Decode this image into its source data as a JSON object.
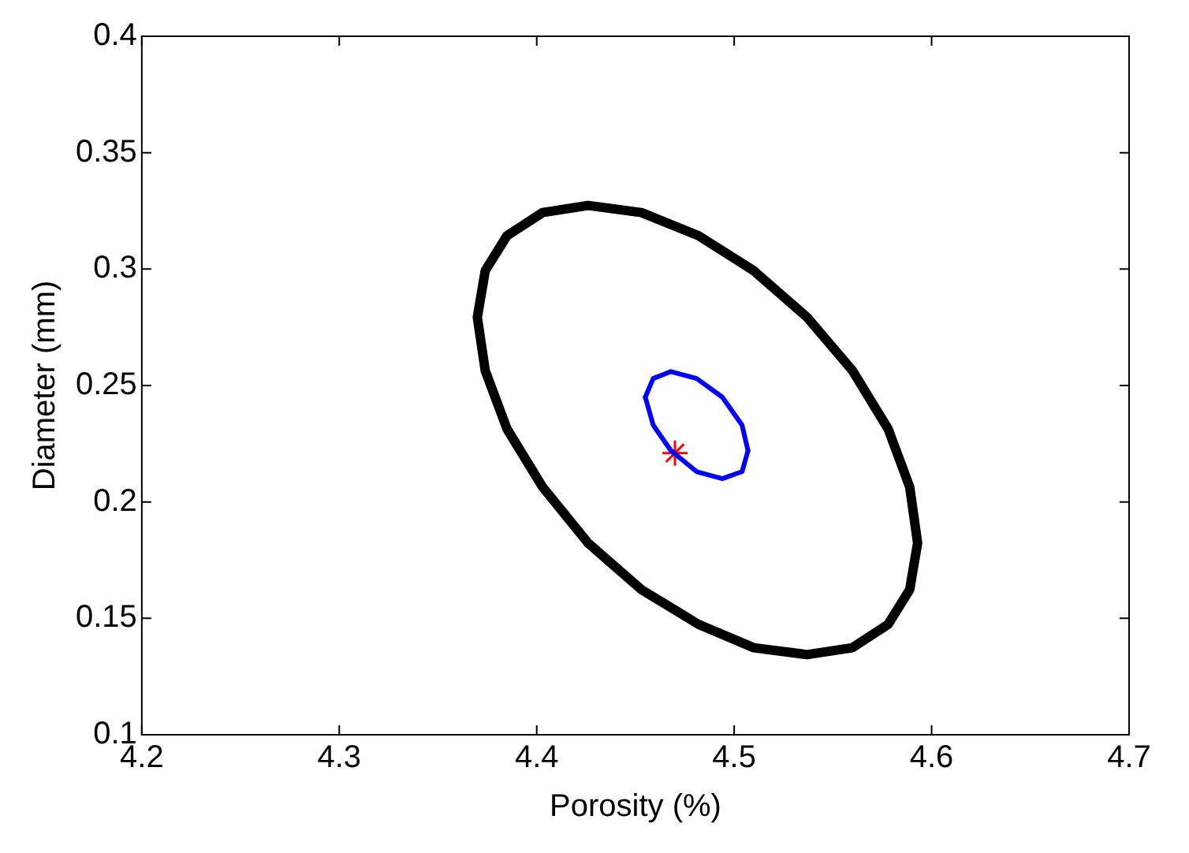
{
  "chart_data": {
    "type": "line",
    "xlabel": "Porosity (%)",
    "ylabel": "Diameter (mm)",
    "xlim": [
      4.2,
      4.7
    ],
    "xticks": [
      4.2,
      4.3,
      4.4,
      4.5,
      4.6,
      4.7
    ],
    "ylim": [
      0.1,
      0.4
    ],
    "yticks": [
      0.1,
      0.15,
      0.2,
      0.25,
      0.3,
      0.35,
      0.4
    ],
    "grid": false,
    "legend": false,
    "series": [
      {
        "color": "#0000ff",
        "x": [
          4.455,
          4.459,
          4.468,
          4.481,
          4.494,
          4.504,
          4.507
        ],
        "values": [
          0.245,
          0.253,
          0.256,
          0.253,
          0.245,
          0.233,
          0.222
        ]
      },
      {
        "color": "#0000ff",
        "x": [
          4.455,
          4.459,
          4.468,
          4.481,
          4.494,
          4.504,
          4.507
        ],
        "values": [
          0.245,
          0.233,
          0.222,
          0.213,
          0.21,
          0.213,
          0.222
        ]
      },
      {
        "type": "scatter",
        "color": "#ff0000",
        "marker": "cross",
        "x": [
          4.47
        ],
        "values": [
          0.221
        ]
      }
    ]
  }
}
